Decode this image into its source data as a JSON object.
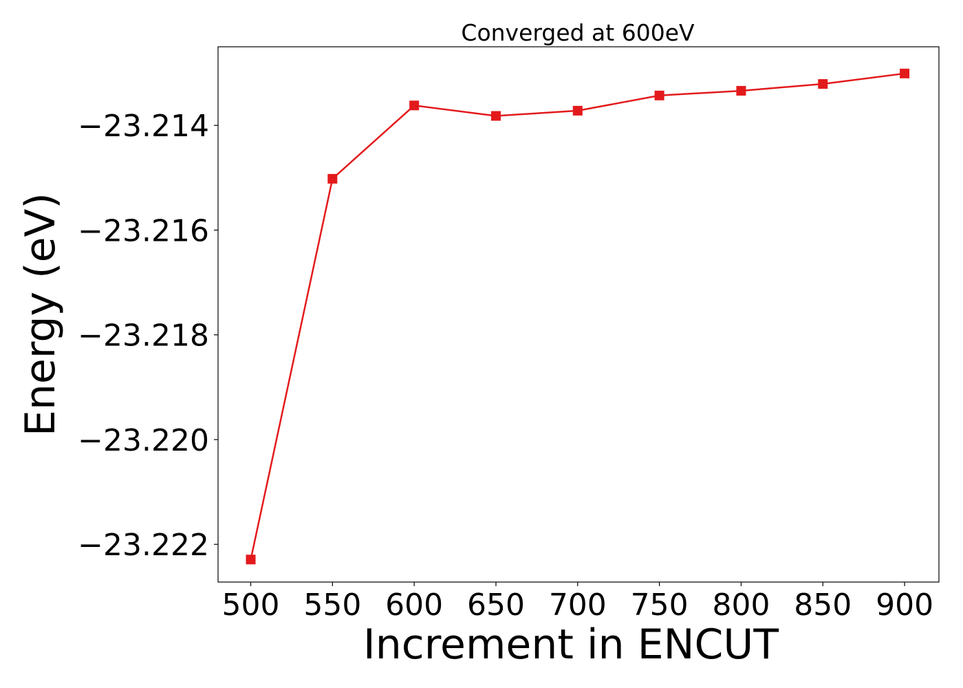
{
  "chart_data": {
    "type": "line",
    "title": "Converged at 600eV",
    "xlabel": "Increment in ENCUT",
    "ylabel": "Energy (eV)",
    "x": [
      500,
      550,
      600,
      650,
      700,
      750,
      800,
      850,
      900
    ],
    "series": [
      {
        "values": [
          -23.22229,
          -23.21502,
          -23.21362,
          -23.21382,
          -23.21372,
          -23.21343,
          -23.21334,
          -23.21321,
          -23.21301
        ],
        "color": "#e31a1c",
        "marker": "square"
      }
    ],
    "xlim": [
      480,
      921
    ],
    "ylim": [
      -23.22272,
      -23.2125
    ],
    "xticks": [
      500,
      550,
      600,
      650,
      700,
      750,
      800,
      850,
      900
    ],
    "yticks": [
      -23.222,
      -23.22,
      -23.218,
      -23.216,
      -23.214
    ],
    "ytick_labels": [
      "−23.222",
      "−23.220",
      "−23.218",
      "−23.216",
      "−23.214"
    ],
    "grid": false,
    "legend": "none"
  }
}
